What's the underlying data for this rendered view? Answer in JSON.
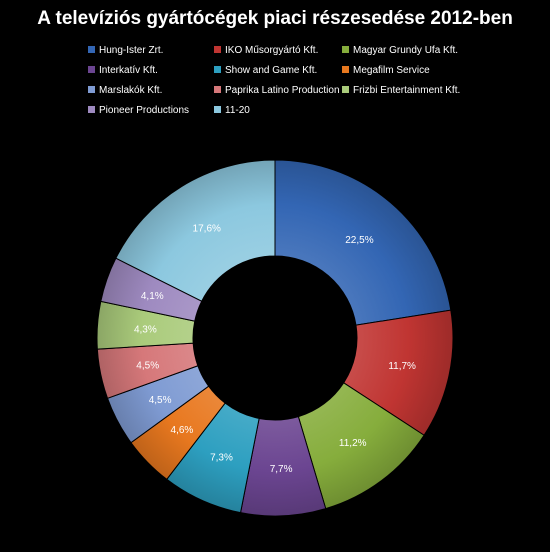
{
  "chart_data": {
    "type": "pie",
    "variant": "donut",
    "title": "A televíziós gyártócégek piaci részesedése 2012-ben",
    "categories": [
      "Hung-Ister Zrt.",
      "IKO Műsorgyártó Kft.",
      "Magyar Grundy Ufa Kft.",
      "Interkatív Kft.",
      "Show and Game Kft.",
      "Megafilm Service",
      "Marslakók Kft.",
      "Paprika Latino Production",
      "Frizbi Entertainment Kft.",
      "Pioneer Productions",
      "11-20"
    ],
    "values": [
      22.5,
      11.7,
      11.2,
      7.7,
      7.3,
      4.6,
      4.5,
      4.5,
      4.3,
      4.1,
      17.6
    ],
    "data_labels": [
      "22,5%",
      "11,7%",
      "11,2%",
      "7,7%",
      "7,3%",
      "4,6%",
      "4,5%",
      "4,5%",
      "4,3%",
      "4,1%",
      "17,6%"
    ],
    "colors": [
      "#3366b4",
      "#c03532",
      "#86ad3c",
      "#6b4591",
      "#2d9fc0",
      "#e8781f",
      "#7f9bd3",
      "#d6787a",
      "#aacb7b",
      "#9e8ac0",
      "#8cc8df"
    ],
    "legend_position": "top",
    "legend_columns": 3
  }
}
